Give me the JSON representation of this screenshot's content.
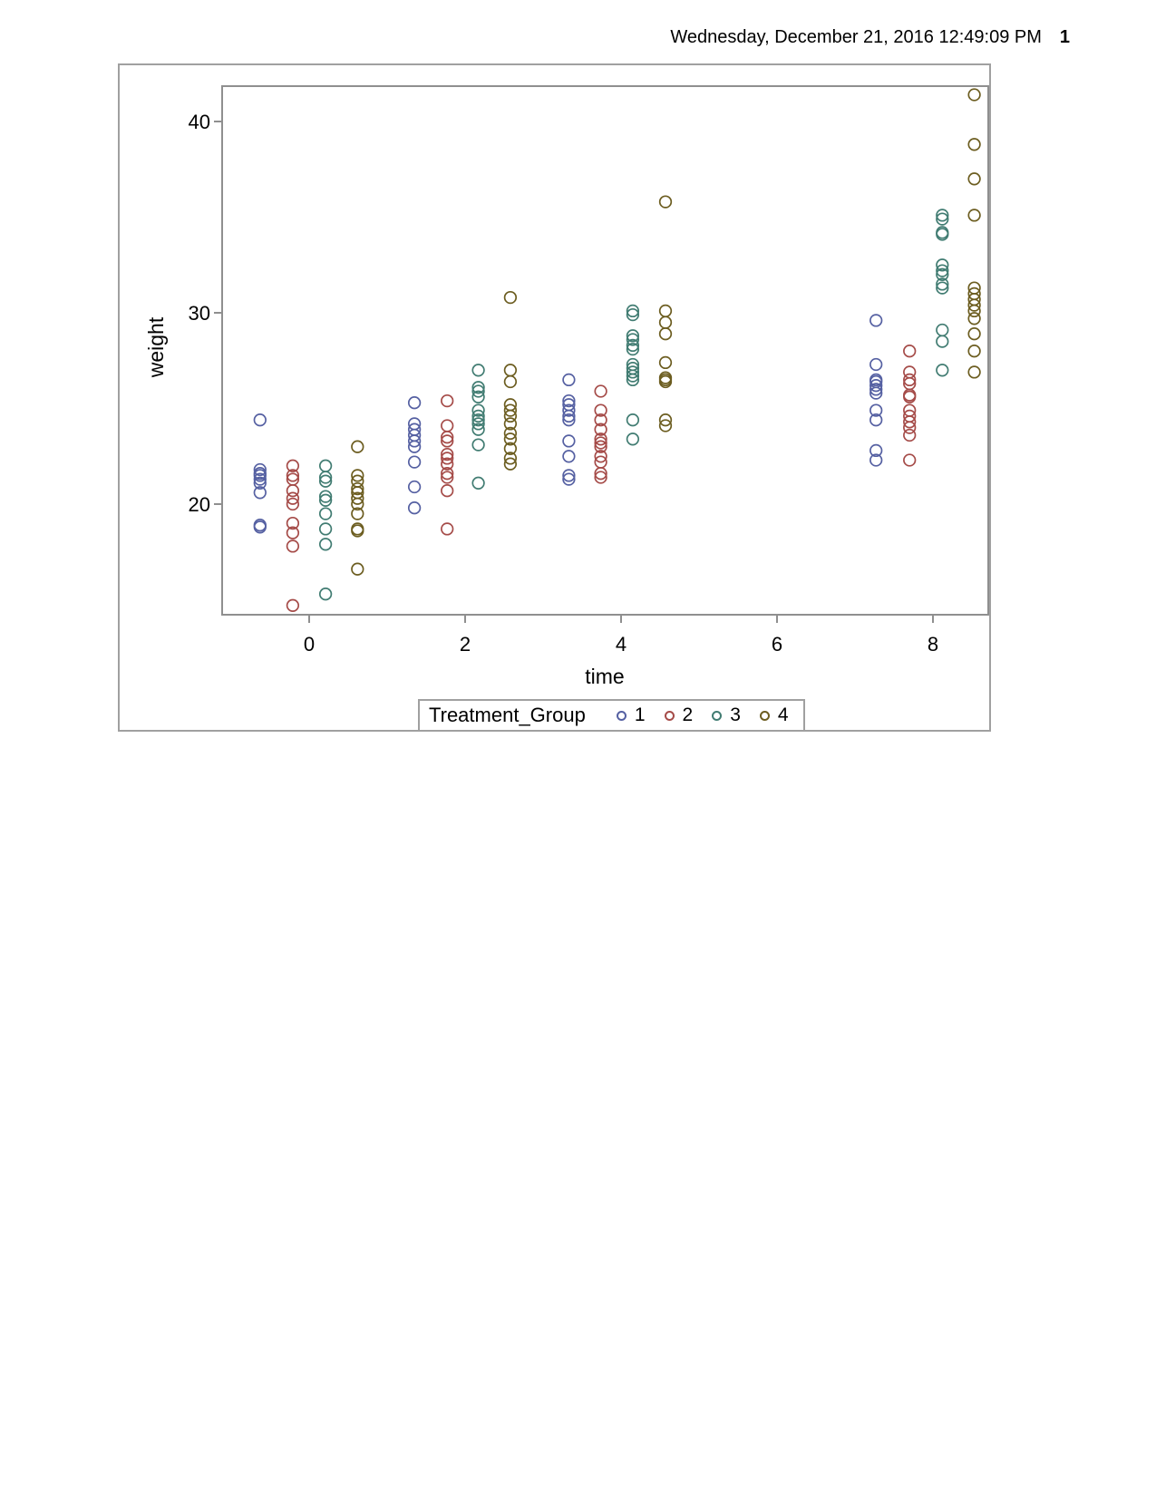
{
  "page": {
    "header_datetime": "Wednesday, December 21, 2016 12:49:09 PM",
    "page_number": "1"
  },
  "chart_data": {
    "type": "scatter",
    "title": "",
    "xlabel": "time",
    "ylabel": "weight",
    "xticks": [
      0,
      2,
      4,
      6,
      8
    ],
    "yticks": [
      20,
      30,
      40
    ],
    "xlim": [
      -1.12,
      8.71
    ],
    "ylim": [
      14.2,
      41.85
    ],
    "grid": false,
    "marker": "open-circle",
    "frame_color": "#8F8F8F",
    "legend": {
      "title": "Treatment_Group",
      "position": "bottom",
      "entries": [
        "1",
        "2",
        "3",
        "4"
      ]
    },
    "nominal_times": [
      0,
      2,
      4,
      8
    ],
    "series": [
      {
        "name": "1",
        "color": "#5560A2",
        "clusters": [
          {
            "time": -0.63,
            "weights": [
              24.4,
              21.8,
              21.6,
              21.5,
              21.3,
              21.1,
              20.6,
              18.9,
              18.8
            ]
          },
          {
            "time": 1.35,
            "weights": [
              25.3,
              24.2,
              23.9,
              23.6,
              23.3,
              23.0,
              22.2,
              20.9,
              19.8
            ]
          },
          {
            "time": 3.33,
            "weights": [
              26.5,
              25.4,
              25.2,
              24.9,
              24.6,
              24.4,
              23.3,
              22.5,
              21.5,
              21.3
            ]
          },
          {
            "time": 7.27,
            "weights": [
              29.6,
              27.3,
              26.5,
              26.4,
              26.2,
              26.0,
              25.8,
              24.9,
              24.4,
              22.8,
              22.3
            ]
          }
        ]
      },
      {
        "name": "2",
        "color": "#A54B48",
        "clusters": [
          {
            "time": -0.21,
            "weights": [
              22.0,
              21.5,
              21.3,
              20.7,
              20.3,
              20.0,
              19.0,
              18.5,
              17.8,
              14.7
            ]
          },
          {
            "time": 1.77,
            "weights": [
              25.4,
              24.1,
              23.5,
              23.3,
              22.6,
              22.4,
              22.1,
              21.6,
              21.4,
              20.7,
              18.7
            ]
          },
          {
            "time": 3.74,
            "weights": [
              25.9,
              24.9,
              24.4,
              23.9,
              23.4,
              23.2,
              23.0,
              22.5,
              22.2,
              21.6,
              21.4
            ]
          },
          {
            "time": 7.7,
            "weights": [
              28.0,
              26.9,
              26.5,
              26.3,
              25.7,
              25.6,
              24.9,
              24.6,
              24.3,
              24.0,
              23.6,
              22.3
            ]
          }
        ]
      },
      {
        "name": "3",
        "color": "#417C72",
        "clusters": [
          {
            "time": 0.21,
            "weights": [
              22.0,
              21.4,
              21.2,
              20.4,
              20.2,
              19.5,
              18.7,
              17.9,
              15.3
            ]
          },
          {
            "time": 2.17,
            "weights": [
              27.0,
              26.1,
              25.9,
              25.6,
              24.9,
              24.6,
              24.4,
              24.2,
              23.9,
              23.1,
              21.1
            ]
          },
          {
            "time": 4.15,
            "weights": [
              30.1,
              29.9,
              28.8,
              28.6,
              28.3,
              28.1,
              27.3,
              27.1,
              26.9,
              26.7,
              26.5,
              24.4,
              23.4
            ]
          },
          {
            "time": 8.12,
            "weights": [
              35.1,
              34.9,
              34.2,
              34.1,
              32.5,
              32.2,
              32.0,
              31.5,
              31.3,
              29.1,
              28.5,
              27.0
            ]
          }
        ]
      },
      {
        "name": "4",
        "color": "#6C5D20",
        "clusters": [
          {
            "time": 0.62,
            "weights": [
              23.0,
              21.5,
              21.2,
              20.8,
              20.6,
              20.3,
              20.0,
              19.5,
              18.7,
              18.6,
              16.6
            ]
          },
          {
            "time": 2.58,
            "weights": [
              30.8,
              27.0,
              26.4,
              25.2,
              24.9,
              24.6,
              24.2,
              23.7,
              23.4,
              22.9,
              22.4,
              22.1
            ]
          },
          {
            "time": 4.57,
            "weights": [
              35.8,
              30.1,
              29.5,
              28.9,
              27.4,
              26.6,
              26.5,
              26.4,
              24.4,
              24.1
            ]
          },
          {
            "time": 8.53,
            "weights": [
              41.4,
              38.8,
              37.0,
              35.1,
              31.3,
              31.0,
              30.7,
              30.4,
              30.1,
              29.7,
              28.9,
              28.0,
              26.9
            ]
          }
        ]
      }
    ]
  }
}
